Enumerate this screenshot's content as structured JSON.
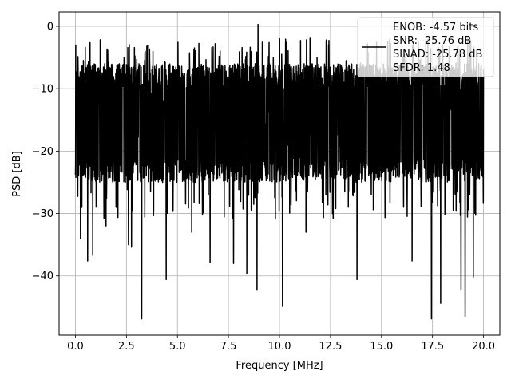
{
  "chart_data": {
    "type": "line",
    "xlabel": "Frequency [MHz]",
    "ylabel": "PSD [dB]",
    "xlim": [
      -0.8,
      20.8
    ],
    "ylim": [
      -49.5,
      2.3
    ],
    "xticks": [
      0.0,
      2.5,
      5.0,
      7.5,
      10.0,
      12.5,
      15.0,
      17.5,
      20.0
    ],
    "xtick_labels": [
      "0.0",
      "2.5",
      "5.0",
      "7.5",
      "10.0",
      "12.5",
      "15.0",
      "17.5",
      "20.0"
    ],
    "yticks": [
      0,
      -10,
      -20,
      -30,
      -40
    ],
    "ytick_labels": [
      "0",
      "−10",
      "−20",
      "−30",
      "−40"
    ],
    "grid": true,
    "legend_position": "top-right",
    "legend_entries": [
      "ENOB: -4.57 bits",
      "SNR: -25.76 dB",
      "SINAD: -25.78 dB",
      "SFDR: 1.48"
    ],
    "series": [
      {
        "color": "#000000",
        "x_range": [
          0,
          20
        ],
        "typical_band": [
          -23,
          -8
        ],
        "max_value": 0.3,
        "min_value": -46.9,
        "deep_dips": [
          {
            "x": 0.1,
            "y": -24.5
          },
          {
            "x": 0.25,
            "y": -34.0
          },
          {
            "x": 0.6,
            "y": -37.6
          },
          {
            "x": 0.85,
            "y": -36.7
          },
          {
            "x": 1.5,
            "y": -32.0
          },
          {
            "x": 2.6,
            "y": -35.0
          },
          {
            "x": 2.75,
            "y": -35.4
          },
          {
            "x": 3.25,
            "y": -46.9
          },
          {
            "x": 4.45,
            "y": -40.6
          },
          {
            "x": 5.7,
            "y": -33.0
          },
          {
            "x": 6.6,
            "y": -37.9
          },
          {
            "x": 7.75,
            "y": -38.0
          },
          {
            "x": 8.4,
            "y": -39.7
          },
          {
            "x": 8.9,
            "y": -42.3
          },
          {
            "x": 10.15,
            "y": -44.9
          },
          {
            "x": 11.3,
            "y": -33.0
          },
          {
            "x": 13.8,
            "y": -40.6
          },
          {
            "x": 16.5,
            "y": -37.6
          },
          {
            "x": 17.45,
            "y": -46.9
          },
          {
            "x": 17.9,
            "y": -44.4
          },
          {
            "x": 18.9,
            "y": -42.2
          },
          {
            "x": 19.1,
            "y": -46.5
          },
          {
            "x": 19.5,
            "y": -40.2
          }
        ],
        "high_peaks": [
          {
            "x": 0.02,
            "y": -3.0
          },
          {
            "x": 8.95,
            "y": 0.3
          },
          {
            "x": 11.5,
            "y": -1.8
          },
          {
            "x": 15.4,
            "y": -2.1
          },
          {
            "x": 16.8,
            "y": -2.3
          },
          {
            "x": 3.5,
            "y": -3.2
          }
        ]
      }
    ]
  }
}
